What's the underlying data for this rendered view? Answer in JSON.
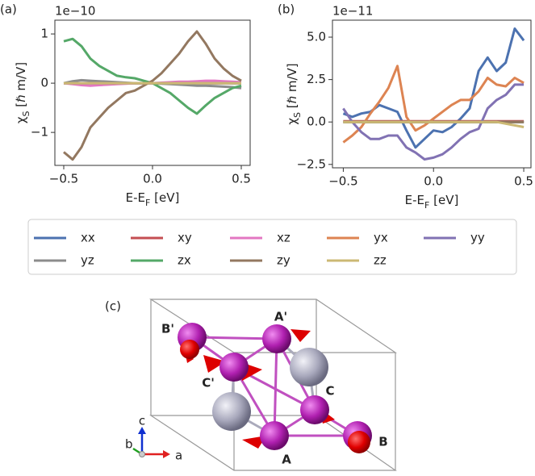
{
  "chart_data": [
    {
      "type": "line",
      "panel_label": "(a)",
      "offset_label": "1e−10",
      "xlabel": [
        "E-E",
        "F",
        " [eV]"
      ],
      "ylabel": [
        "χ",
        "S",
        " [ℏ m/V]"
      ],
      "xlim": [
        -0.55,
        0.55
      ],
      "ylim": [
        -1.67,
        1.28
      ],
      "xticks": [
        {
          "value": -0.5,
          "label": "−0.5"
        },
        {
          "value": 0,
          "label": "0.0"
        },
        {
          "value": 0.5,
          "label": "0.5"
        }
      ],
      "yticks": [
        {
          "value": -1,
          "label": "−1"
        },
        0,
        1
      ],
      "x": [
        -0.5,
        -0.45,
        -0.4,
        -0.35,
        -0.3,
        -0.25,
        -0.2,
        -0.15,
        -0.1,
        -0.05,
        0,
        0.05,
        0.1,
        0.15,
        0.2,
        0.25,
        0.3,
        0.35,
        0.4,
        0.45,
        0.5
      ],
      "series": [
        {
          "name": "xx",
          "color": "#4c72b0",
          "values": [
            0,
            0,
            0,
            0,
            0,
            0,
            0,
            0,
            0,
            0,
            0,
            0,
            0,
            0,
            0,
            0,
            0,
            0,
            0,
            0,
            0
          ]
        },
        {
          "name": "xy",
          "color": "#c44e52",
          "values": [
            0,
            0,
            0,
            0,
            0,
            0,
            0,
            0,
            0,
            0,
            0,
            0,
            0,
            0,
            0,
            0,
            0,
            0,
            0,
            0,
            0
          ]
        },
        {
          "name": "xz",
          "color": "#e377c2",
          "values": [
            0,
            -0.02,
            -0.04,
            -0.05,
            -0.04,
            -0.03,
            -0.02,
            -0.01,
            0,
            0,
            0,
            0.01,
            0.02,
            0.03,
            0.03,
            0.04,
            0.05,
            0.05,
            0.04,
            0.03,
            0.02
          ]
        },
        {
          "name": "yx",
          "color": "#dd8452",
          "values": [
            0,
            0,
            0,
            0,
            0,
            0,
            0,
            0,
            0,
            0,
            0,
            0,
            0,
            0,
            0,
            0,
            0,
            0,
            0,
            0,
            0
          ]
        },
        {
          "name": "yy",
          "color": "#8172b3",
          "values": [
            0,
            0,
            0,
            0,
            0,
            0,
            0,
            0,
            0,
            0,
            0,
            0,
            0,
            0,
            0,
            0,
            0,
            0,
            0,
            0,
            0
          ]
        },
        {
          "name": "yz",
          "color": "#8c8c8c",
          "values": [
            0,
            0.04,
            0.06,
            0.05,
            0.04,
            0.03,
            0.02,
            0.01,
            0,
            0,
            0,
            -0.01,
            -0.02,
            -0.03,
            -0.04,
            -0.05,
            -0.05,
            -0.06,
            -0.07,
            -0.08,
            -0.1
          ]
        },
        {
          "name": "zx",
          "color": "#55a868",
          "values": [
            0.85,
            0.9,
            0.75,
            0.5,
            0.35,
            0.25,
            0.15,
            0.12,
            0.1,
            0.05,
            0,
            -0.1,
            -0.2,
            -0.35,
            -0.5,
            -0.62,
            -0.45,
            -0.3,
            -0.2,
            -0.1,
            -0.05
          ]
        },
        {
          "name": "zy",
          "color": "#937860",
          "values": [
            -1.4,
            -1.55,
            -1.3,
            -0.9,
            -0.7,
            -0.5,
            -0.35,
            -0.2,
            -0.15,
            -0.05,
            0.05,
            0.2,
            0.4,
            0.6,
            0.85,
            1.05,
            0.8,
            0.5,
            0.3,
            0.15,
            0.05
          ]
        },
        {
          "name": "zz",
          "color": "#ccb974",
          "values": [
            0,
            0,
            0,
            0,
            0,
            0,
            0,
            0,
            0,
            0,
            0,
            0,
            0,
            0,
            0,
            0,
            0,
            0,
            0,
            0,
            0
          ]
        }
      ]
    },
    {
      "type": "line",
      "panel_label": "(b)",
      "offset_label": "1e−11",
      "xlabel": [
        "E-E",
        "F",
        " [eV]"
      ],
      "ylabel": [
        "χ",
        "S",
        " [ℏ m/V]"
      ],
      "xlim": [
        -0.56,
        0.54
      ],
      "ylim": [
        -2.7,
        6.0
      ],
      "xticks": [
        {
          "value": -0.5,
          "label": "−0.5"
        },
        {
          "value": 0,
          "label": "0.0"
        },
        {
          "value": 0.5,
          "label": "0.5"
        }
      ],
      "yticks": [
        {
          "value": -2.5,
          "label": "−2.5"
        },
        {
          "value": 0,
          "label": "0.0"
        },
        2.5,
        {
          "value": 5,
          "label": "5.0"
        }
      ],
      "x": [
        -0.5,
        -0.45,
        -0.4,
        -0.35,
        -0.3,
        -0.25,
        -0.2,
        -0.15,
        -0.1,
        -0.05,
        0,
        0.05,
        0.1,
        0.15,
        0.2,
        0.25,
        0.3,
        0.35,
        0.4,
        0.45,
        0.5
      ],
      "series": [
        {
          "name": "xx",
          "color": "#4c72b0",
          "values": [
            0.5,
            0.3,
            0.5,
            0.6,
            1.0,
            0.8,
            0.6,
            -0.5,
            -1.5,
            -1.0,
            -0.5,
            -0.6,
            -0.3,
            0.2,
            0.8,
            3.0,
            3.8,
            3.0,
            3.5,
            5.5,
            4.8
          ]
        },
        {
          "name": "xy",
          "color": "#c44e52",
          "values": [
            0.05,
            0.05,
            0.05,
            0.05,
            0.05,
            0.05,
            0.05,
            0.05,
            0.05,
            0.05,
            0.05,
            0.05,
            0.05,
            0.05,
            0.05,
            0.05,
            0.05,
            0.05,
            0.05,
            0.05,
            0.05
          ]
        },
        {
          "name": "xz",
          "color": "#e377c2",
          "values": [
            0,
            0,
            0,
            0,
            0,
            0,
            0,
            0,
            0,
            0,
            0,
            0,
            0,
            0,
            0,
            0,
            0,
            0,
            0,
            0,
            0
          ]
        },
        {
          "name": "yx",
          "color": "#dd8452",
          "values": [
            -1.2,
            -0.8,
            -0.3,
            0.5,
            1.2,
            2.0,
            3.3,
            0.3,
            -0.5,
            -0.2,
            0.2,
            0.6,
            1.0,
            1.3,
            1.3,
            1.8,
            2.6,
            2.2,
            2.1,
            2.6,
            2.3
          ]
        },
        {
          "name": "yy",
          "color": "#8172b3",
          "values": [
            0.8,
            0.0,
            -0.6,
            -1.0,
            -1.0,
            -0.8,
            -0.8,
            -1.5,
            -1.8,
            -2.2,
            -2.1,
            -1.9,
            -1.5,
            -1.0,
            -0.6,
            -0.4,
            0.8,
            1.3,
            1.6,
            2.2,
            2.2
          ]
        },
        {
          "name": "yz",
          "color": "#8c8c8c",
          "values": [
            0,
            0,
            0,
            0,
            0,
            0,
            0,
            0,
            0,
            0,
            0,
            0,
            0,
            0,
            0,
            0,
            0,
            0,
            0,
            0,
            0
          ]
        },
        {
          "name": "zx",
          "color": "#55a868",
          "values": [
            0,
            0,
            0,
            0,
            0,
            0,
            0,
            0,
            0,
            0,
            0,
            0,
            0,
            0,
            0,
            0,
            0,
            0,
            0,
            0,
            0
          ]
        },
        {
          "name": "zy",
          "color": "#937860",
          "values": [
            0,
            0,
            0,
            0,
            0,
            0,
            0,
            0,
            0,
            0,
            0,
            0,
            0,
            0,
            0,
            0,
            0,
            0,
            0,
            0,
            0
          ]
        },
        {
          "name": "zz",
          "color": "#ccb974",
          "values": [
            0,
            0,
            0,
            0,
            0,
            0,
            0,
            0,
            0,
            0,
            0,
            0,
            0,
            0,
            0,
            0,
            0,
            0,
            -0.1,
            -0.2,
            -0.3
          ]
        }
      ]
    }
  ],
  "structure": {
    "panel_label": "(c)",
    "atom_labels": [
      "A'",
      "B'",
      "C'",
      "C",
      "A",
      "B"
    ],
    "axis_labels": [
      "c",
      "b",
      "a"
    ]
  }
}
